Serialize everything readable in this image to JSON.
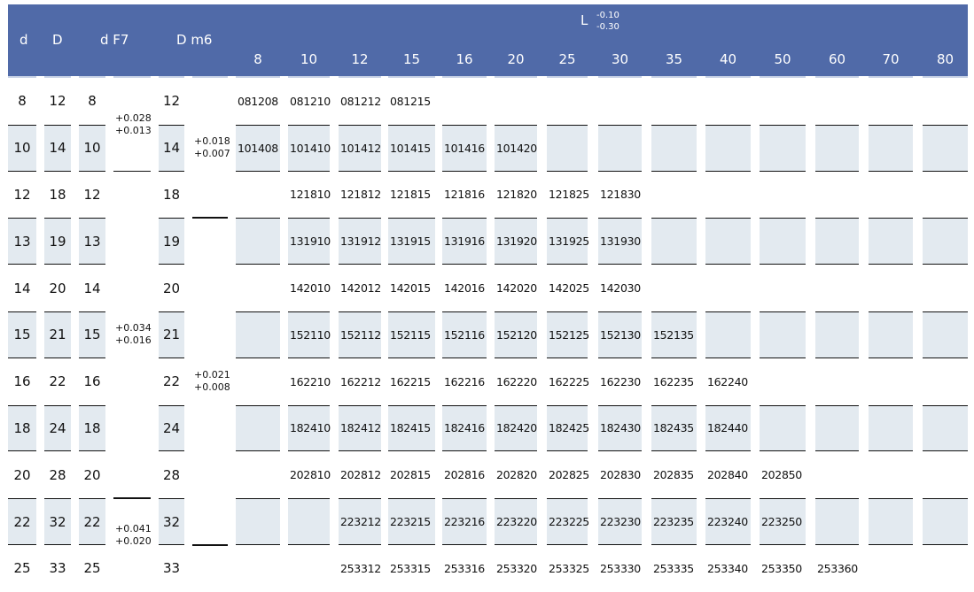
{
  "colors": {
    "header_bg": "#506aa8",
    "shaded_row": "#e3eaf0"
  },
  "header": {
    "d": "d",
    "D": "D",
    "dF7": "d F7",
    "Dm6": "D m6",
    "L": "L",
    "L_tol_upper": "-0.10",
    "L_tol_lower": "-0.30",
    "lengths": [
      "8",
      "10",
      "12",
      "15",
      "16",
      "20",
      "25",
      "30",
      "35",
      "40",
      "50",
      "60",
      "70",
      "80"
    ]
  },
  "tolerances": {
    "dF7": [
      {
        "upper": "+0.028",
        "lower": "+0.013"
      },
      {
        "upper": "+0.034",
        "lower": "+0.016"
      },
      {
        "upper": "+0.041",
        "lower": "+0.020"
      }
    ],
    "Dm6": [
      {
        "upper": "+0.018",
        "lower": "+0.007"
      },
      {
        "upper": "+0.021",
        "lower": "+0.008"
      }
    ]
  },
  "rows": [
    {
      "d": "8",
      "D": "12",
      "dF7": "8",
      "Dm6": "12",
      "codes": [
        "081208",
        "081210",
        "081212",
        "081215",
        "",
        "",
        "",
        "",
        "",
        "",
        "",
        "",
        "",
        ""
      ]
    },
    {
      "d": "10",
      "D": "14",
      "dF7": "10",
      "Dm6": "14",
      "codes": [
        "101408",
        "101410",
        "101412",
        "101415",
        "101416",
        "101420",
        "",
        "",
        "",
        "",
        "",
        "",
        "",
        ""
      ]
    },
    {
      "d": "12",
      "D": "18",
      "dF7": "12",
      "Dm6": "18",
      "codes": [
        "",
        "121810",
        "121812",
        "121815",
        "121816",
        "121820",
        "121825",
        "121830",
        "",
        "",
        "",
        "",
        "",
        ""
      ]
    },
    {
      "d": "13",
      "D": "19",
      "dF7": "13",
      "Dm6": "19",
      "codes": [
        "",
        "131910",
        "131912",
        "131915",
        "131916",
        "131920",
        "131925",
        "131930",
        "",
        "",
        "",
        "",
        "",
        ""
      ]
    },
    {
      "d": "14",
      "D": "20",
      "dF7": "14",
      "Dm6": "20",
      "codes": [
        "",
        "142010",
        "142012",
        "142015",
        "142016",
        "142020",
        "142025",
        "142030",
        "",
        "",
        "",
        "",
        "",
        ""
      ]
    },
    {
      "d": "15",
      "D": "21",
      "dF7": "15",
      "Dm6": "21",
      "codes": [
        "",
        "152110",
        "152112",
        "152115",
        "152116",
        "152120",
        "152125",
        "152130",
        "152135",
        "",
        "",
        "",
        "",
        ""
      ]
    },
    {
      "d": "16",
      "D": "22",
      "dF7": "16",
      "Dm6": "22",
      "codes": [
        "",
        "162210",
        "162212",
        "162215",
        "162216",
        "162220",
        "162225",
        "162230",
        "162235",
        "162240",
        "",
        "",
        "",
        ""
      ]
    },
    {
      "d": "18",
      "D": "24",
      "dF7": "18",
      "Dm6": "24",
      "codes": [
        "",
        "182410",
        "182412",
        "182415",
        "182416",
        "182420",
        "182425",
        "182430",
        "182435",
        "182440",
        "",
        "",
        "",
        ""
      ]
    },
    {
      "d": "20",
      "D": "28",
      "dF7": "20",
      "Dm6": "28",
      "codes": [
        "",
        "202810",
        "202812",
        "202815",
        "202816",
        "202820",
        "202825",
        "202830",
        "202835",
        "202840",
        "202850",
        "",
        "",
        ""
      ]
    },
    {
      "d": "22",
      "D": "32",
      "dF7": "22",
      "Dm6": "32",
      "codes": [
        "",
        "",
        "223212",
        "223215",
        "223216",
        "223220",
        "223225",
        "223230",
        "223235",
        "223240",
        "223250",
        "",
        "",
        ""
      ]
    },
    {
      "d": "25",
      "D": "33",
      "dF7": "25",
      "Dm6": "33",
      "codes": [
        "",
        "",
        "253312",
        "253315",
        "253316",
        "253320",
        "253325",
        "253330",
        "253335",
        "253340",
        "253350",
        "253360",
        "",
        ""
      ]
    }
  ]
}
